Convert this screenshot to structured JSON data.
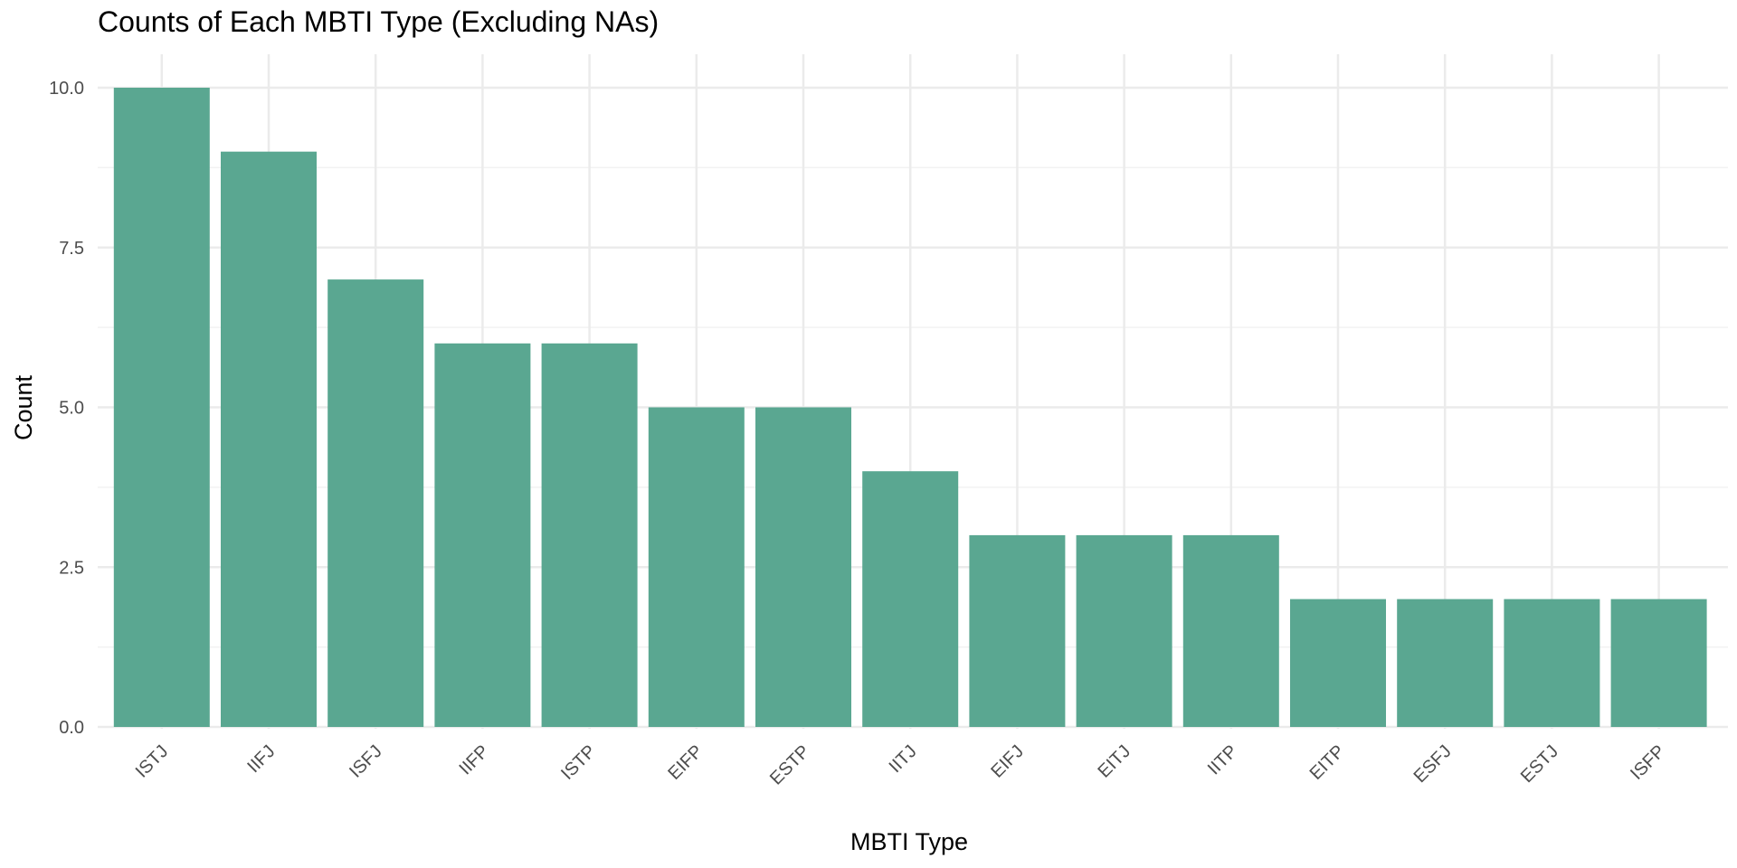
{
  "chart_data": {
    "type": "bar",
    "title": "Counts of Each MBTI Type (Excluding NAs)",
    "xlabel": "MBTI Type",
    "ylabel": "Count",
    "categories": [
      "ISTJ",
      "IIFJ",
      "ISFJ",
      "IIFP",
      "ISTP",
      "EIFP",
      "ESTP",
      "IITJ",
      "EIFJ",
      "EITJ",
      "IITP",
      "EITP",
      "ESFJ",
      "ESTJ",
      "ISFP"
    ],
    "values": [
      10,
      9,
      7,
      6,
      6,
      5,
      5,
      4,
      3,
      3,
      3,
      2,
      2,
      2,
      2
    ],
    "ylim": [
      0,
      10
    ],
    "yticks": [
      "0.0",
      "2.5",
      "5.0",
      "7.5",
      "10.0"
    ],
    "ytick_values": [
      0,
      2.5,
      5,
      7.5,
      10
    ],
    "grid": true,
    "bar_color": "#5aa791",
    "grid_major_color": "#ebebeb",
    "grid_minor_color": "#f2f2f2"
  }
}
